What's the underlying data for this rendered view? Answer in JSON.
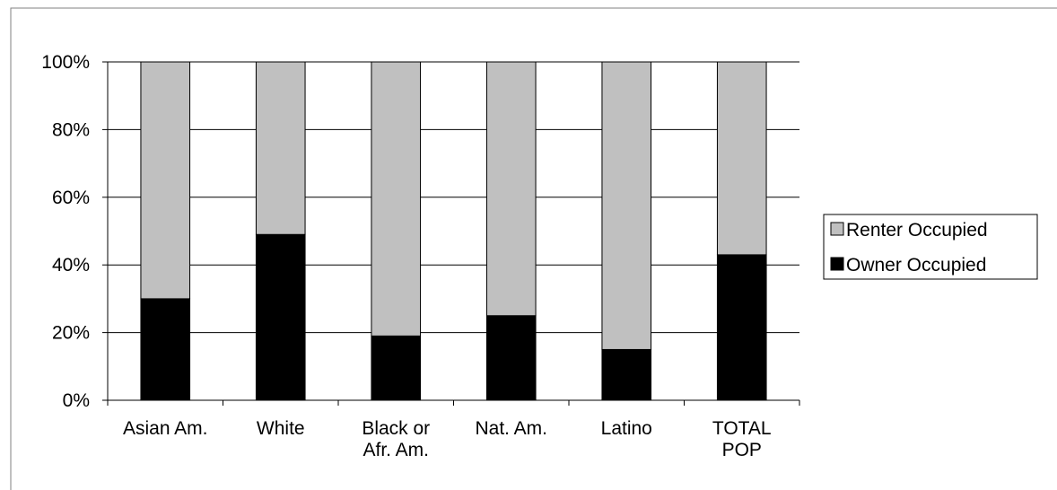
{
  "chart_data": {
    "type": "bar",
    "stacked": true,
    "percent_stacked": true,
    "categories": [
      [
        "Asian Am."
      ],
      [
        "White"
      ],
      [
        "Black or",
        "Afr. Am."
      ],
      [
        "Nat. Am."
      ],
      [
        "Latino"
      ],
      [
        "TOTAL",
        "POP"
      ]
    ],
    "series": [
      {
        "name": "Owner Occupied",
        "values": [
          30,
          49,
          19,
          25,
          15,
          43
        ],
        "color": "#000000"
      },
      {
        "name": "Renter Occupied",
        "values": [
          70,
          51,
          81,
          75,
          85,
          57
        ],
        "color": "#c0c0c0"
      }
    ],
    "y_ticks": [
      "0%",
      "20%",
      "40%",
      "60%",
      "80%",
      "100%"
    ],
    "ylim": [
      0,
      100
    ],
    "grid": true,
    "legend": {
      "placement": "right",
      "entries": [
        {
          "label": "Renter Occupied",
          "color": "#c0c0c0"
        },
        {
          "label": "Owner Occupied",
          "color": "#000000"
        }
      ]
    },
    "colors": {
      "owner": "#000000",
      "renter": "#c0c0c0",
      "grid": "#000000",
      "frame": "#808080"
    }
  }
}
